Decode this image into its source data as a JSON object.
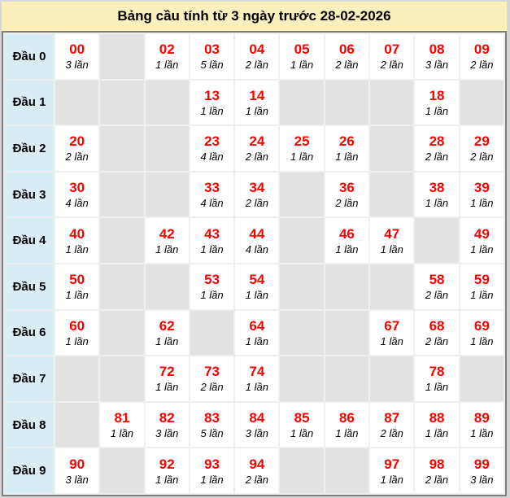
{
  "title": "Bảng cầu tính từ 3 ngày trước 28-02-2026",
  "colors": {
    "page_bg": "#d6d6d6",
    "title_bg": "#fbefbc",
    "row_label_bg": "#d9edf5",
    "empty_cell_bg": "#e2e2e2",
    "filled_cell_bg": "#ffffff",
    "number_red": "#fc0000",
    "outer_border": "#7e7e7e",
    "grid_line": "#efefef"
  },
  "table": {
    "rows": [
      {
        "label": "Đầu 0",
        "cells": [
          {
            "num": "00",
            "count": "3 lần"
          },
          null,
          {
            "num": "02",
            "count": "1 lần"
          },
          {
            "num": "03",
            "count": "5 lần"
          },
          {
            "num": "04",
            "count": "2 lần"
          },
          {
            "num": "05",
            "count": "1 lần"
          },
          {
            "num": "06",
            "count": "2 lần"
          },
          {
            "num": "07",
            "count": "2 lần"
          },
          {
            "num": "08",
            "count": "3 lần"
          },
          {
            "num": "09",
            "count": "2 lần"
          }
        ]
      },
      {
        "label": "Đầu 1",
        "cells": [
          null,
          null,
          null,
          {
            "num": "13",
            "count": "1 lần"
          },
          {
            "num": "14",
            "count": "1 lần"
          },
          null,
          null,
          null,
          {
            "num": "18",
            "count": "1 lần"
          },
          null
        ]
      },
      {
        "label": "Đầu 2",
        "cells": [
          {
            "num": "20",
            "count": "2 lần"
          },
          null,
          null,
          {
            "num": "23",
            "count": "4 lần"
          },
          {
            "num": "24",
            "count": "2 lần"
          },
          {
            "num": "25",
            "count": "1 lần"
          },
          {
            "num": "26",
            "count": "1 lần"
          },
          null,
          {
            "num": "28",
            "count": "2 lần"
          },
          {
            "num": "29",
            "count": "2 lần"
          }
        ]
      },
      {
        "label": "Đầu 3",
        "cells": [
          {
            "num": "30",
            "count": "4 lần"
          },
          null,
          null,
          {
            "num": "33",
            "count": "4 lần"
          },
          {
            "num": "34",
            "count": "2 lần"
          },
          null,
          {
            "num": "36",
            "count": "2 lần"
          },
          null,
          {
            "num": "38",
            "count": "1 lần"
          },
          {
            "num": "39",
            "count": "1 lần"
          }
        ]
      },
      {
        "label": "Đầu 4",
        "cells": [
          {
            "num": "40",
            "count": "1 lần"
          },
          null,
          {
            "num": "42",
            "count": "1 lần"
          },
          {
            "num": "43",
            "count": "1 lần"
          },
          {
            "num": "44",
            "count": "4 lần"
          },
          null,
          {
            "num": "46",
            "count": "1 lần"
          },
          {
            "num": "47",
            "count": "1 lần"
          },
          null,
          {
            "num": "49",
            "count": "1 lần"
          }
        ]
      },
      {
        "label": "Đầu 5",
        "cells": [
          {
            "num": "50",
            "count": "1 lần"
          },
          null,
          null,
          {
            "num": "53",
            "count": "1 lần"
          },
          {
            "num": "54",
            "count": "1 lần"
          },
          null,
          null,
          null,
          {
            "num": "58",
            "count": "2 lần"
          },
          {
            "num": "59",
            "count": "1 lần"
          }
        ]
      },
      {
        "label": "Đầu 6",
        "cells": [
          {
            "num": "60",
            "count": "1 lần"
          },
          null,
          {
            "num": "62",
            "count": "1 lần"
          },
          null,
          {
            "num": "64",
            "count": "1 lần"
          },
          null,
          null,
          {
            "num": "67",
            "count": "1 lần"
          },
          {
            "num": "68",
            "count": "2 lần"
          },
          {
            "num": "69",
            "count": "1 lần"
          }
        ]
      },
      {
        "label": "Đầu 7",
        "cells": [
          null,
          null,
          {
            "num": "72",
            "count": "1 lần"
          },
          {
            "num": "73",
            "count": "2 lần"
          },
          {
            "num": "74",
            "count": "1 lần"
          },
          null,
          null,
          null,
          {
            "num": "78",
            "count": "1 lần"
          },
          null
        ]
      },
      {
        "label": "Đầu 8",
        "cells": [
          null,
          {
            "num": "81",
            "count": "1 lần"
          },
          {
            "num": "82",
            "count": "3 lần"
          },
          {
            "num": "83",
            "count": "5 lần"
          },
          {
            "num": "84",
            "count": "3 lần"
          },
          {
            "num": "85",
            "count": "1 lần"
          },
          {
            "num": "86",
            "count": "1 lần"
          },
          {
            "num": "87",
            "count": "2 lần"
          },
          {
            "num": "88",
            "count": "1 lần"
          },
          {
            "num": "89",
            "count": "1 lần"
          }
        ]
      },
      {
        "label": "Đầu 9",
        "cells": [
          {
            "num": "90",
            "count": "3 lần"
          },
          null,
          {
            "num": "92",
            "count": "1 lần"
          },
          {
            "num": "93",
            "count": "1 lần"
          },
          {
            "num": "94",
            "count": "2 lần"
          },
          null,
          null,
          {
            "num": "97",
            "count": "1 lần"
          },
          {
            "num": "98",
            "count": "2 lần"
          },
          {
            "num": "99",
            "count": "3 lần"
          }
        ]
      }
    ]
  }
}
